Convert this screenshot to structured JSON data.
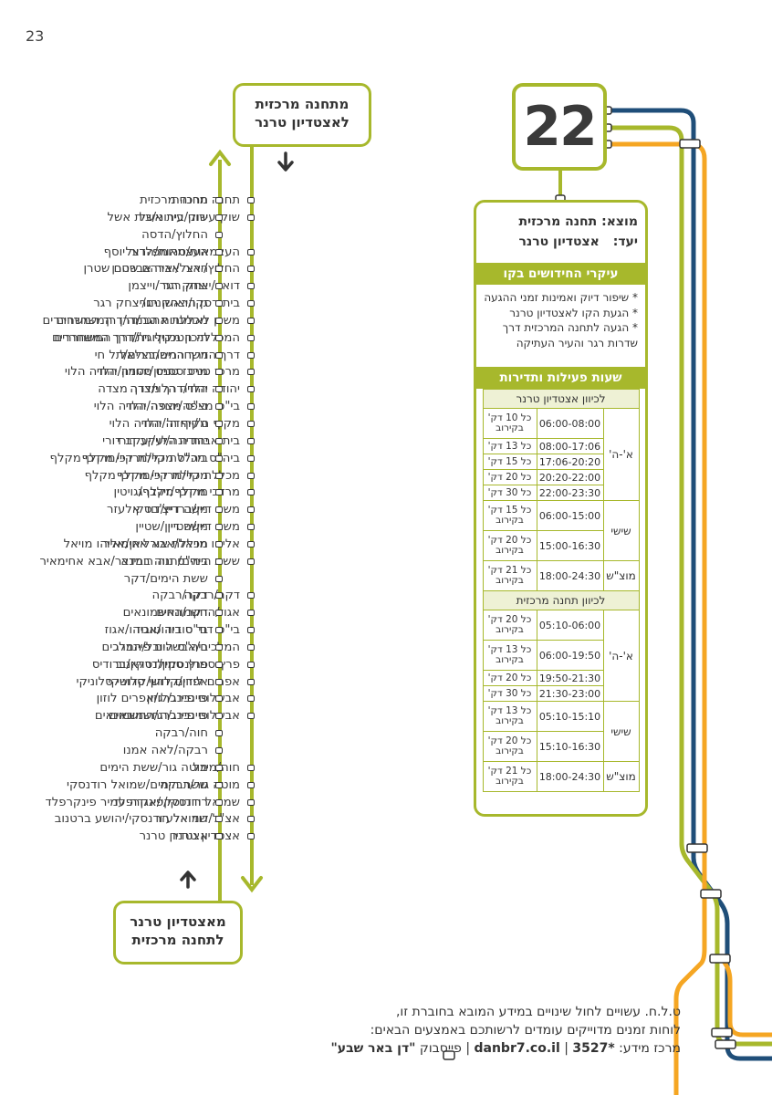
{
  "page_number": "23",
  "line_number": "22",
  "header_top": {
    "line1": "מתחנה מרכזית",
    "line2": "לאצטדיון טרנר"
  },
  "header_bottom": {
    "line1": "מאצטדיון טרנר",
    "line2": "לתחנה מרכזית"
  },
  "origin": {
    "label": "מוצא:",
    "value": "תחנה מרכזית"
  },
  "destination": {
    "label": "יעד:",
    "value": "אצטדיון טרנר"
  },
  "news_title": "עיקרי החידושים בקו",
  "news": [
    "* שיפור דיוק ואמינות זמני ההגעה",
    "* הגעת הקו לאצטדיון טרנר",
    "* הגעה לתחנה המרכזית דרך שדרות רגר והעיר העתיקה"
  ],
  "schedule_title": "שעות פעילות ותדירות",
  "schedule": [
    {
      "direction": "לכיוון אצטדיון טרנר",
      "groups": [
        {
          "day": "א'-ה'",
          "rows": [
            {
              "time": "06:00-08:00",
              "freq": "כל 10 דק' בקירוב"
            },
            {
              "time": "08:00-17:06",
              "freq": "כל 13 דק'"
            },
            {
              "time": "17:06-20:20",
              "freq": "כל 15 דק'"
            },
            {
              "time": "20:20-22:00",
              "freq": "כל 20 דק'"
            },
            {
              "time": "22:00-23:30",
              "freq": "כל 30 דק'"
            }
          ]
        },
        {
          "day": "שישי",
          "rows": [
            {
              "time": "06:00-15:00",
              "freq": "כל 15 דק' בקירוב"
            },
            {
              "time": "15:00-16:30",
              "freq": "כל 20 דק' בקירוב"
            }
          ]
        },
        {
          "day": "מוצ\"ש",
          "rows": [
            {
              "time": "18:00-24:30",
              "freq": "כל 21 דק' בקירוב"
            }
          ]
        }
      ]
    },
    {
      "direction": "לכיוון תחנה מרכזית",
      "groups": [
        {
          "day": "א'-ה'",
          "rows": [
            {
              "time": "05:10-06:00",
              "freq": "כל 20 דק' בקירוב"
            },
            {
              "time": "06:00-19:50",
              "freq": "כל 13 דק' בקירוב"
            },
            {
              "time": "19:50-21:30",
              "freq": "כל 20 דק'"
            },
            {
              "time": "21:30-23:00",
              "freq": "כל 30 דק'"
            }
          ]
        },
        {
          "day": "שישי",
          "rows": [
            {
              "time": "05:10-15:10",
              "freq": "כל 13 דק' בקירוב"
            },
            {
              "time": "15:10-16:30",
              "freq": "כל 20 דק' בקירוב"
            }
          ]
        },
        {
          "day": "מוצ\"ש",
          "rows": [
            {
              "time": "18:00-24:30",
              "freq": "כל 21 דק' בקירוב"
            }
          ]
        }
      ]
    }
  ],
  "stops_to_stadium": [
    "תחנה מרכזית",
    "שוק עירוני/בית אשל",
    "",
    "העצמאות/טרומפלדור יוסף",
    "החלוץ/יאיר אברהם שטרן",
    "דואר/יצחק רגר",
    "בית רסקו/יצחק רגר",
    "משכן לאומנויות הבמה/דרך המשחררים",
    "המכללה הטכנולוגית/דרך המשחררים",
    "דרך המשחררים/בצלאל",
    "מרכז טניס ססמון/יהודה הלוי",
    "יהודה הלוי/דרך מצדה",
    "בי\"ס מצפה/יהודה הלוי",
    "מקיף ה'/יהודה הלוי",
    "בית אבות יונה/יעקב דורי",
    "ביה\"ס מכללת קיי/מרדכי מקלף",
    "מכללת קיי/מרדכי מקלף",
    "מרדכי מקלף/זילברג",
    "משה דיין/ברדיצ'בסקי",
    "משה דיין/שטיין",
    "אליהו מויאל/אבא אחימאיר",
    "ששת הימים/חנה רובינא",
    "",
    "דקר/רבקה",
    "אגוז/החשמונאים",
    "בי\"ס דוד טוביהו/אגוז",
    "המלכים/אבשלום פיינברג",
    "פרץ סמולנסקין/דרויאנוב",
    "אפרים לוזון/קדושי סלוניקי",
    "אבשלום פיינברג/אפרים לוזון",
    "אבשלום פיינברג/החשמונאים",
    "",
    "",
    "חוה/מיכל",
    "מוטה גור/רבקה",
    "שמואל רודנסקי/אגדה עמיר פינקרפלד",
    "אצ\"ל/דוד אלעזר",
    "אצטדיון טרנר"
  ],
  "stops_to_central": [
    "תחנה מרכזית",
    "שוק עירוני/בית אשל",
    "החלוץ/הדסה",
    "העצמאות/הרצל",
    "הרצל/יאיר אברהם שטרן",
    "יצחק רגר/וייצמן",
    "גן הראשונים/יצחק רגר",
    "מכללת אתגר/דרך המשחררים",
    "תיכון מקיף ח'/דרך המשחררים",
    "דרך המשחררים/תל חי",
    "מרכז טניס ססמון/יהודה הלוי",
    "יהודה הלוי/דרך מצדה",
    "בי\"ס מצפה/יהודה הלוי",
    "מקיף ה'/יהודה הלוי",
    "יהודה הלוי/יעקב דורי",
    "ביה\"ס מכללת קיי/מרדכי מקלף",
    "מכללת קיי/מרדכי מקלף",
    "מרדכי מקלף/גויטין",
    "משה דיין/דוד אלעזר",
    "משה דיין/שטיין",
    "מכללת אורליאן/אליהו מויאל",
    "ביה\"ס נווה במדבר/אבא אחימאיר",
    "ששת הימים/דקר",
    "דקר/רבקה",
    "דקר/החשמונאים",
    "בי\"ס דוד טוביהו/אגוז",
    "ביה\"ס היובל/המלכים",
    "פרץ סמולנסקין/ברודיס",
    "אפרים לוזון/קדושי סלוניקי",
    "פיינברג/לוזון",
    "פיינברג/החשמונאים",
    "חוה/רבקה",
    "רבקה/לאה אמנו",
    "מוטה גור/ששת הימים",
    "ששת הימים/שמואל רודנסקי",
    "רודנסקי/פינקרפלד",
    "שמואל רודנסקי/יהושע ברטנוב",
    "אצטדיון טרנר"
  ],
  "footer": {
    "line1": "ט.ל.ח. עשויים לחול שינויים במידע המובא בחוברת זו,",
    "line2": "לוחות זמנים מדוייקים עומדים לרשותכם באמצעים הבאים:",
    "info_label": "מרכז מידע:",
    "info_phone": "3527*",
    "website": "danbr7.co.il",
    "facebook_label": "פייסבוק",
    "facebook_name": "\"דן באר שבע\""
  },
  "colors": {
    "green": "#a7b82c",
    "navy": "#1f4e79",
    "orange": "#f5a623"
  }
}
